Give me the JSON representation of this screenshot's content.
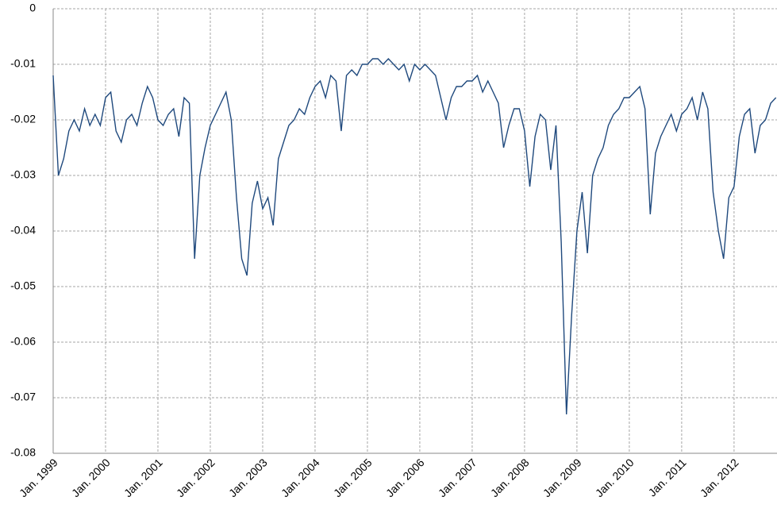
{
  "chart_data": {
    "type": "line",
    "color": "#1f497d",
    "grid": true,
    "xlim": [
      1999,
      2012.82
    ],
    "xticks": [
      {
        "value": 1999,
        "label": "Jan. 1999"
      },
      {
        "value": 2000,
        "label": "Jan. 2000"
      },
      {
        "value": 2001,
        "label": "Jan. 2001"
      },
      {
        "value": 2002,
        "label": "Jan. 2002"
      },
      {
        "value": 2003,
        "label": "Jan. 2003"
      },
      {
        "value": 2004,
        "label": "Jan. 2004"
      },
      {
        "value": 2005,
        "label": "Jan. 2005"
      },
      {
        "value": 2006,
        "label": "Jan. 2006"
      },
      {
        "value": 2007,
        "label": "Jan. 2007"
      },
      {
        "value": 2008,
        "label": "Jan. 2008"
      },
      {
        "value": 2009,
        "label": "Jan. 2009"
      },
      {
        "value": 2010,
        "label": "Jan. 2010"
      },
      {
        "value": 2011,
        "label": "Jan. 2011"
      },
      {
        "value": 2012,
        "label": "Jan. 2012"
      }
    ],
    "ylim": [
      -0.08,
      0
    ],
    "yticks": [
      0,
      -0.01,
      -0.02,
      -0.03,
      -0.04,
      -0.05,
      -0.06,
      -0.07,
      -0.08
    ],
    "x": [
      1999.0,
      1999.1,
      1999.2,
      1999.3,
      1999.4,
      1999.5,
      1999.6,
      1999.7,
      1999.8,
      1999.9,
      2000.0,
      2000.1,
      2000.2,
      2000.3,
      2000.4,
      2000.5,
      2000.6,
      2000.7,
      2000.8,
      2000.9,
      2001.0,
      2001.1,
      2001.2,
      2001.3,
      2001.4,
      2001.5,
      2001.6,
      2001.7,
      2001.8,
      2001.9,
      2002.0,
      2002.1,
      2002.2,
      2002.3,
      2002.4,
      2002.5,
      2002.6,
      2002.7,
      2002.8,
      2002.9,
      2003.0,
      2003.1,
      2003.2,
      2003.3,
      2003.4,
      2003.5,
      2003.6,
      2003.7,
      2003.8,
      2003.9,
      2004.0,
      2004.1,
      2004.2,
      2004.3,
      2004.4,
      2004.5,
      2004.6,
      2004.7,
      2004.8,
      2004.9,
      2005.0,
      2005.1,
      2005.2,
      2005.3,
      2005.4,
      2005.5,
      2005.6,
      2005.7,
      2005.8,
      2005.9,
      2006.0,
      2006.1,
      2006.2,
      2006.3,
      2006.4,
      2006.5,
      2006.6,
      2006.7,
      2006.8,
      2006.9,
      2007.0,
      2007.1,
      2007.2,
      2007.3,
      2007.4,
      2007.5,
      2007.6,
      2007.7,
      2007.8,
      2007.9,
      2008.0,
      2008.1,
      2008.2,
      2008.3,
      2008.4,
      2008.5,
      2008.6,
      2008.7,
      2008.8,
      2008.9,
      2009.0,
      2009.1,
      2009.2,
      2009.3,
      2009.4,
      2009.5,
      2009.6,
      2009.7,
      2009.8,
      2009.9,
      2010.0,
      2010.1,
      2010.2,
      2010.3,
      2010.4,
      2010.5,
      2010.6,
      2010.7,
      2010.8,
      2010.9,
      2011.0,
      2011.1,
      2011.2,
      2011.3,
      2011.4,
      2011.5,
      2011.6,
      2011.7,
      2011.8,
      2011.9,
      2012.0,
      2012.1,
      2012.2,
      2012.3,
      2012.4,
      2012.5,
      2012.6,
      2012.7,
      2012.8
    ],
    "values": [
      -0.012,
      -0.03,
      -0.027,
      -0.022,
      -0.02,
      -0.022,
      -0.018,
      -0.021,
      -0.019,
      -0.021,
      -0.016,
      -0.015,
      -0.022,
      -0.024,
      -0.02,
      -0.019,
      -0.021,
      -0.017,
      -0.014,
      -0.016,
      -0.02,
      -0.021,
      -0.019,
      -0.018,
      -0.023,
      -0.016,
      -0.017,
      -0.045,
      -0.03,
      -0.025,
      -0.021,
      -0.019,
      -0.017,
      -0.015,
      -0.02,
      -0.034,
      -0.045,
      -0.048,
      -0.035,
      -0.031,
      -0.036,
      -0.034,
      -0.039,
      -0.027,
      -0.024,
      -0.021,
      -0.02,
      -0.018,
      -0.019,
      -0.016,
      -0.014,
      -0.013,
      -0.016,
      -0.012,
      -0.013,
      -0.022,
      -0.012,
      -0.011,
      -0.012,
      -0.01,
      -0.01,
      -0.009,
      -0.009,
      -0.01,
      -0.009,
      -0.01,
      -0.011,
      -0.01,
      -0.013,
      -0.01,
      -0.011,
      -0.01,
      -0.011,
      -0.012,
      -0.016,
      -0.02,
      -0.016,
      -0.014,
      -0.014,
      -0.013,
      -0.013,
      -0.012,
      -0.015,
      -0.013,
      -0.015,
      -0.017,
      -0.025,
      -0.021,
      -0.018,
      -0.018,
      -0.022,
      -0.032,
      -0.023,
      -0.019,
      -0.02,
      -0.029,
      -0.021,
      -0.042,
      -0.073,
      -0.055,
      -0.04,
      -0.033,
      -0.044,
      -0.03,
      -0.027,
      -0.025,
      -0.021,
      -0.019,
      -0.018,
      -0.016,
      -0.016,
      -0.015,
      -0.014,
      -0.018,
      -0.037,
      -0.026,
      -0.023,
      -0.021,
      -0.019,
      -0.022,
      -0.019,
      -0.018,
      -0.016,
      -0.02,
      -0.015,
      -0.018,
      -0.033,
      -0.04,
      -0.045,
      -0.034,
      -0.032,
      -0.023,
      -0.019,
      -0.018,
      -0.026,
      -0.021,
      -0.02,
      -0.017,
      -0.016
    ]
  }
}
